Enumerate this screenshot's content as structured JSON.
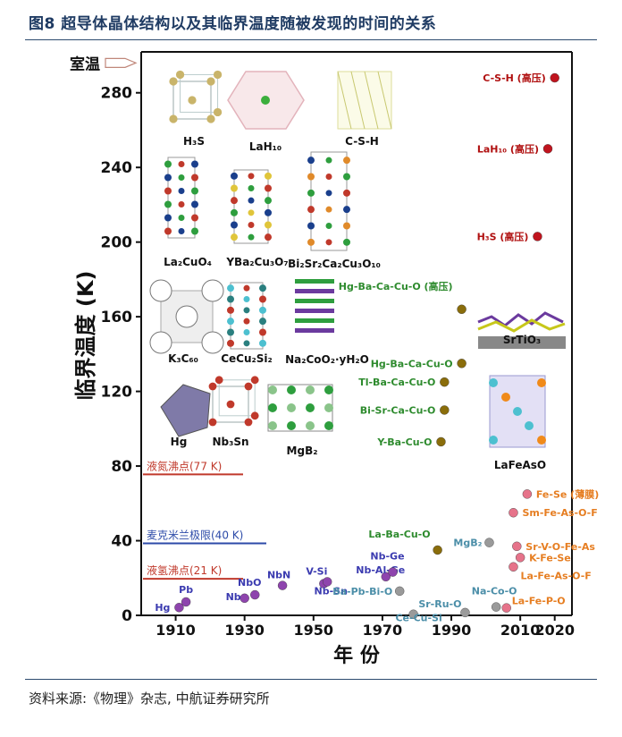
{
  "header": {
    "title": "图8 超导体晶体结构以及其临界温度随被发现的时间的关系"
  },
  "footer": {
    "source": "资料来源:《物理》杂志, 中航证券研究所"
  },
  "chart_data": {
    "type": "scatter",
    "title": "",
    "xlabel": "年 份",
    "ylabel": "临界温度 (K)",
    "xlim": [
      1900,
      2025
    ],
    "ylim": [
      0,
      300
    ],
    "xticks": [
      1910,
      1930,
      1950,
      1970,
      1990,
      2010,
      2020
    ],
    "yticks": [
      0,
      40,
      80,
      120,
      160,
      200,
      240,
      280
    ],
    "room_temp_label": "室温",
    "room_temp_value": 296,
    "reference_lines": [
      {
        "label": "液氮沸点(77 K)",
        "value": 77,
        "color": "#c0392b"
      },
      {
        "label": "麦克米兰极限(40 K)",
        "value": 40,
        "color": "#2c4aa8"
      },
      {
        "label": "液氢沸点(21 K)",
        "value": 21,
        "color": "#c0392b"
      }
    ],
    "points": [
      {
        "label": "Hg",
        "x": 1911,
        "y": 4.2,
        "color": "#8e44ad",
        "label_color": "#3b3bb0"
      },
      {
        "label": "Pb",
        "x": 1913,
        "y": 7.2,
        "color": "#8e44ad",
        "label_color": "#3b3bb0"
      },
      {
        "label": "Nb",
        "x": 1930,
        "y": 9.2,
        "color": "#8e44ad",
        "label_color": "#3b3bb0"
      },
      {
        "label": "NbO",
        "x": 1933,
        "y": 11,
        "color": "#8e44ad",
        "label_color": "#3b3bb0"
      },
      {
        "label": "NbN",
        "x": 1941,
        "y": 16,
        "color": "#8e44ad",
        "label_color": "#3b3bb0"
      },
      {
        "label": "V-Si",
        "x": 1953,
        "y": 17,
        "color": "#8e44ad",
        "label_color": "#3b3bb0"
      },
      {
        "label": "Nb-Sn",
        "x": 1954,
        "y": 18,
        "color": "#8e44ad",
        "label_color": "#3b3bb0"
      },
      {
        "label": "Nb-Al-Ge",
        "x": 1971,
        "y": 20.7,
        "color": "#8e44ad",
        "label_color": "#3b3bb0"
      },
      {
        "label": "Nb-Ge",
        "x": 1973,
        "y": 23.2,
        "color": "#8e44ad",
        "label_color": "#3b3bb0"
      },
      {
        "label": "Ba-Pb-Bi-O",
        "x": 1975,
        "y": 13,
        "color": "#9a9a9a",
        "label_color": "#4b8ea8"
      },
      {
        "label": "Ce-Cu-Si",
        "x": 1979,
        "y": 0.6,
        "color": "#9a9a9a",
        "label_color": "#4b8ea8"
      },
      {
        "label": "La-Ba-Cu-O",
        "x": 1986,
        "y": 35,
        "color": "#8a6d0b",
        "label_color": "#2e8b2e"
      },
      {
        "label": "Y-Ba-Cu-O",
        "x": 1987,
        "y": 93,
        "color": "#8a6d0b",
        "label_color": "#2e8b2e"
      },
      {
        "label": "Bi-Sr-Ca-Cu-O",
        "x": 1988,
        "y": 110,
        "color": "#8a6d0b",
        "label_color": "#2e8b2e"
      },
      {
        "label": "Tl-Ba-Ca-Cu-O",
        "x": 1988,
        "y": 125,
        "color": "#8a6d0b",
        "label_color": "#2e8b2e"
      },
      {
        "label": "Hg-Ba-Ca-Cu-O",
        "x": 1993,
        "y": 135,
        "color": "#8a6d0b",
        "label_color": "#2e8b2e"
      },
      {
        "label": "Hg-Ba-Ca-Cu-O (高压)",
        "x": 1993,
        "y": 164,
        "color": "#8a6d0b",
        "label_color": "#2e8b2e"
      },
      {
        "label": "Sr-Ru-O",
        "x": 1994,
        "y": 1.5,
        "color": "#9a9a9a",
        "label_color": "#4b8ea8"
      },
      {
        "label": "MgB₂",
        "x": 2001,
        "y": 39,
        "color": "#9a9a9a",
        "label_color": "#4b8ea8"
      },
      {
        "label": "Na-Co-O",
        "x": 2003,
        "y": 4.5,
        "color": "#9a9a9a",
        "label_color": "#4b8ea8"
      },
      {
        "label": "La-Fe-P-O",
        "x": 2006,
        "y": 4,
        "color": "#e6738a",
        "label_color": "#e67e22"
      },
      {
        "label": "La-Fe-As-O-F",
        "x": 2008,
        "y": 26,
        "color": "#e6738a",
        "label_color": "#e67e22"
      },
      {
        "label": "K-Fe-Se",
        "x": 2010,
        "y": 31,
        "color": "#e6738a",
        "label_color": "#e67e22"
      },
      {
        "label": "Sr-V-O-Fe-As",
        "x": 2009,
        "y": 37,
        "color": "#e6738a",
        "label_color": "#e67e22"
      },
      {
        "label": "Sm-Fe-As-O-F",
        "x": 2008,
        "y": 55,
        "color": "#e6738a",
        "label_color": "#e67e22"
      },
      {
        "label": "Fe-Se (薄膜)",
        "x": 2012,
        "y": 65,
        "color": "#e6738a",
        "label_color": "#e67e22"
      },
      {
        "label": "H₃S (高压)",
        "x": 2015,
        "y": 203,
        "color": "#c0141e",
        "label_color": "#b01010"
      },
      {
        "label": "LaH₁₀ (高压)",
        "x": 2018,
        "y": 250,
        "color": "#c0141e",
        "label_color": "#b01010"
      },
      {
        "label": "C-S-H (高压)",
        "x": 2020,
        "y": 288,
        "color": "#c0141e",
        "label_color": "#b01010"
      }
    ],
    "structure_labels": [
      "H₃S",
      "LaH₁₀",
      "C-S-H",
      "La₂CuO₄",
      "YBa₂Cu₃O₇",
      "Bi₂Sr₂Ca₂Cu₃O₁₀",
      "K₃C₆₀",
      "CeCu₂Si₂",
      "Na₂CoO₂·yH₂O",
      "Hg",
      "Nb₃Sn",
      "MgB₂",
      "SrTiO₃",
      "LaFeAsO"
    ]
  }
}
